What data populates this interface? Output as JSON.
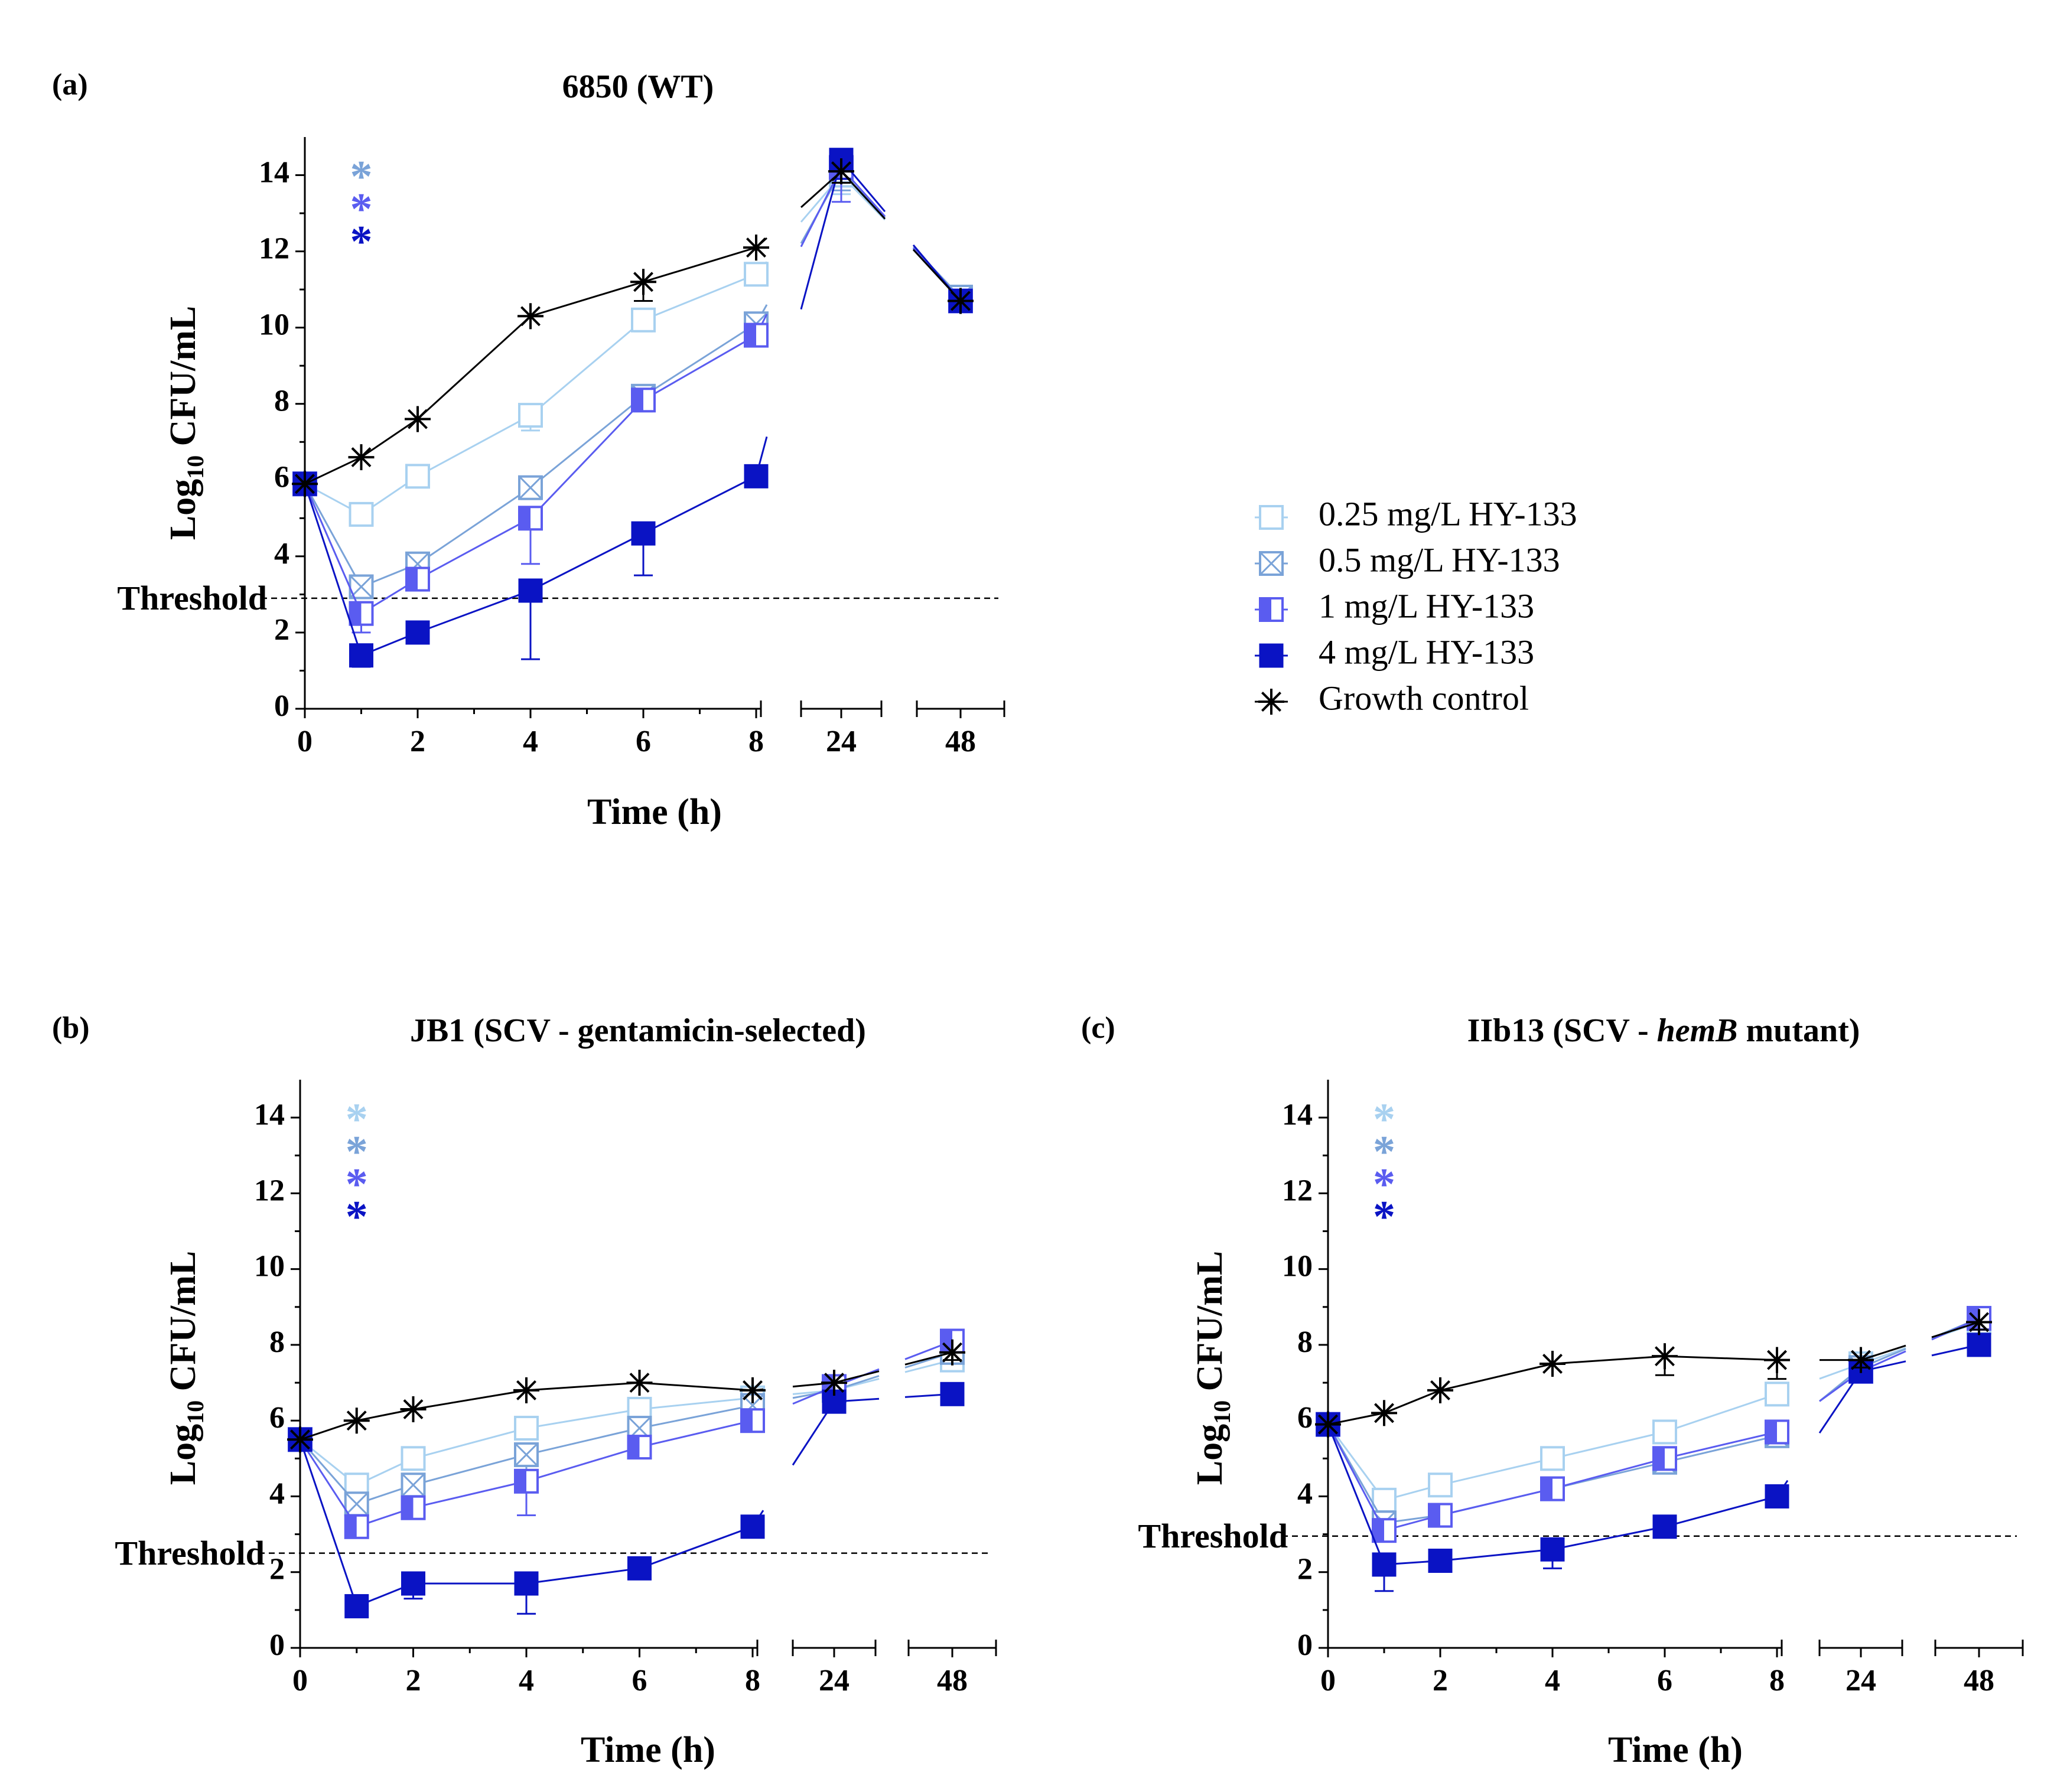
{
  "legend": [
    {
      "series": "0.25 mg/L HY-133",
      "marker": "open-square-icon",
      "color": "#a8d1f0"
    },
    {
      "series": "0.5 mg/L HY-133",
      "marker": "crossed-square-icon",
      "color": "#7aa3d8"
    },
    {
      "series": "1 mg/L HY-133",
      "marker": "half-filled-square-icon",
      "color": "#5a5cf0"
    },
    {
      "series": "4 mg/L HY-133",
      "marker": "filled-square-icon",
      "color": "#0a13c4"
    },
    {
      "series": "Growth control",
      "marker": "asterisk-icon",
      "color": "#000000"
    }
  ],
  "chart_data": [
    {
      "type": "line",
      "panel": "(a)",
      "title": "6850 (WT)",
      "xlabel": "Time (h)",
      "ylabel": "Log10 CFU/mL",
      "ylabel_parts": [
        "Log",
        "10",
        " CFU/mL"
      ],
      "x": [
        0,
        1,
        2,
        4,
        6,
        8,
        24,
        48
      ],
      "x_ticks": [
        "0",
        "2",
        "4",
        "6",
        "8",
        "24",
        "48"
      ],
      "y_ticks": [
        "0",
        "2",
        "4",
        "6",
        "8",
        "10",
        "12",
        "14"
      ],
      "ylim": [
        0,
        15
      ],
      "threshold": {
        "label": "Threshold",
        "value": 2.9
      },
      "significance_stars": [
        "*",
        "*",
        "*"
      ],
      "significance_colors": [
        "#7aa3d8",
        "#5a5cf0",
        "#0a13c4"
      ],
      "series": [
        {
          "name": "0.25 mg/L HY-133",
          "values": [
            5.9,
            5.1,
            6.1,
            7.7,
            10.2,
            11.4,
            14.0,
            10.8
          ],
          "errors": [
            0,
            0.2,
            0.2,
            0.4,
            0.3,
            0.2,
            0.5,
            0.2
          ]
        },
        {
          "name": "0.5 mg/L HY-133",
          "values": [
            5.9,
            3.2,
            3.8,
            5.8,
            8.2,
            10.1,
            14.1,
            10.8
          ],
          "errors": [
            0,
            0.3,
            0.2,
            0.3,
            0.3,
            0.2,
            0.5,
            0.2
          ]
        },
        {
          "name": "1 mg/L HY-133",
          "values": [
            5.9,
            2.5,
            3.4,
            5.0,
            8.1,
            9.8,
            14.2,
            10.7
          ],
          "errors": [
            0,
            0.5,
            0.3,
            1.2,
            0.3,
            0.2,
            0.9,
            0.2
          ]
        },
        {
          "name": "4 mg/L HY-133",
          "values": [
            5.9,
            1.4,
            2.0,
            3.1,
            4.6,
            6.1,
            14.4,
            10.7
          ],
          "errors": [
            0,
            0.3,
            0.2,
            1.8,
            1.1,
            0.2,
            0.5,
            0.2
          ]
        },
        {
          "name": "Growth control",
          "values": [
            5.9,
            6.6,
            7.6,
            10.3,
            11.2,
            12.1,
            14.1,
            10.7
          ],
          "errors": [
            0,
            0.1,
            0.1,
            0.1,
            0.5,
            0.1,
            0.3,
            0.1
          ]
        }
      ]
    },
    {
      "type": "line",
      "panel": "(b)",
      "title": "JB1 (SCV - gentamicin-selected)",
      "xlabel": "Time (h)",
      "ylabel": "Log10 CFU/mL",
      "ylabel_parts": [
        "Log",
        "10",
        " CFU/mL"
      ],
      "x": [
        0,
        1,
        2,
        4,
        6,
        8,
        24,
        48
      ],
      "x_ticks": [
        "0",
        "2",
        "4",
        "6",
        "8",
        "24",
        "48"
      ],
      "y_ticks": [
        "0",
        "2",
        "4",
        "6",
        "8",
        "10",
        "12",
        "14"
      ],
      "ylim": [
        0,
        15
      ],
      "threshold": {
        "label": "Threshold",
        "value": 2.5
      },
      "significance_stars": [
        "*",
        "*",
        "*",
        "*"
      ],
      "significance_colors": [
        "#a8d1f0",
        "#7aa3d8",
        "#5a5cf0",
        "#0a13c4"
      ],
      "series": [
        {
          "name": "0.25 mg/L HY-133",
          "values": [
            5.5,
            4.3,
            5.0,
            5.8,
            6.3,
            6.6,
            6.8,
            7.6
          ],
          "errors": [
            0,
            0.2,
            0.2,
            0.3,
            0.2,
            0.2,
            0.2,
            0.3
          ]
        },
        {
          "name": "0.5 mg/L HY-133",
          "values": [
            5.5,
            3.8,
            4.3,
            5.1,
            5.8,
            6.4,
            6.8,
            7.8
          ],
          "errors": [
            0,
            0.3,
            0.2,
            0.4,
            0.2,
            0.2,
            0.2,
            0.3
          ]
        },
        {
          "name": "1 mg/L HY-133",
          "values": [
            5.5,
            3.2,
            3.7,
            4.4,
            5.3,
            6.0,
            6.9,
            8.1
          ],
          "errors": [
            0,
            0.3,
            0.3,
            0.9,
            0.3,
            0.2,
            0.2,
            0.3
          ]
        },
        {
          "name": "4 mg/L HY-133",
          "values": [
            5.5,
            1.1,
            1.7,
            1.7,
            2.1,
            3.2,
            6.5,
            6.7
          ],
          "errors": [
            0,
            0.2,
            0.4,
            0.8,
            0.2,
            0.2,
            0.2,
            0.2
          ]
        },
        {
          "name": "Growth control",
          "values": [
            5.5,
            6.0,
            6.3,
            6.8,
            7.0,
            6.8,
            7.0,
            7.8
          ],
          "errors": [
            0,
            0.1,
            0.1,
            0.1,
            0.1,
            0.1,
            0.1,
            0.2
          ]
        }
      ]
    },
    {
      "type": "line",
      "panel": "(c)",
      "title_parts": [
        "IIb13 (SCV - ",
        "hemB",
        " mutant)"
      ],
      "xlabel": "Time (h)",
      "ylabel": "Log10 CFU/mL",
      "ylabel_parts": [
        "Log",
        "10",
        " CFU/mL"
      ],
      "x": [
        0,
        1,
        2,
        4,
        6,
        8,
        24,
        48
      ],
      "x_ticks": [
        "0",
        "2",
        "4",
        "6",
        "8",
        "24",
        "48"
      ],
      "y_ticks": [
        "0",
        "2",
        "4",
        "6",
        "8",
        "10",
        "12",
        "14"
      ],
      "ylim": [
        0,
        15
      ],
      "threshold": {
        "label": "Threshold",
        "value": 2.95
      },
      "significance_stars": [
        "*",
        "*",
        "*",
        "*"
      ],
      "significance_colors": [
        "#a8d1f0",
        "#7aa3d8",
        "#5a5cf0",
        "#0a13c4"
      ],
      "series": [
        {
          "name": "0.25 mg/L HY-133",
          "values": [
            5.9,
            3.9,
            4.3,
            5.0,
            5.7,
            6.7,
            7.5,
            8.6
          ],
          "errors": [
            0,
            0.3,
            0.2,
            0.2,
            0.2,
            0.3,
            0.2,
            0.2
          ]
        },
        {
          "name": "0.5 mg/L HY-133",
          "values": [
            5.9,
            3.3,
            3.5,
            4.2,
            4.9,
            5.6,
            7.4,
            8.7
          ],
          "errors": [
            0,
            0.3,
            0.2,
            0.2,
            0.2,
            0.3,
            0.2,
            0.2
          ]
        },
        {
          "name": "1 mg/L HY-133",
          "values": [
            5.9,
            3.1,
            3.5,
            4.2,
            5.0,
            5.7,
            7.3,
            8.7
          ],
          "errors": [
            0,
            0.3,
            0.2,
            0.2,
            0.2,
            0.2,
            0.2,
            0.2
          ]
        },
        {
          "name": "4 mg/L HY-133",
          "values": [
            5.9,
            2.2,
            2.3,
            2.6,
            3.2,
            4.0,
            7.3,
            8.0
          ],
          "errors": [
            0,
            0.7,
            0.2,
            0.5,
            0.2,
            0.2,
            0.2,
            0.2
          ]
        },
        {
          "name": "Growth control",
          "values": [
            5.9,
            6.2,
            6.8,
            7.5,
            7.7,
            7.6,
            7.6,
            8.6
          ],
          "errors": [
            0,
            0.1,
            0.1,
            0.1,
            0.5,
            0.5,
            0.2,
            0.2
          ]
        }
      ]
    }
  ]
}
